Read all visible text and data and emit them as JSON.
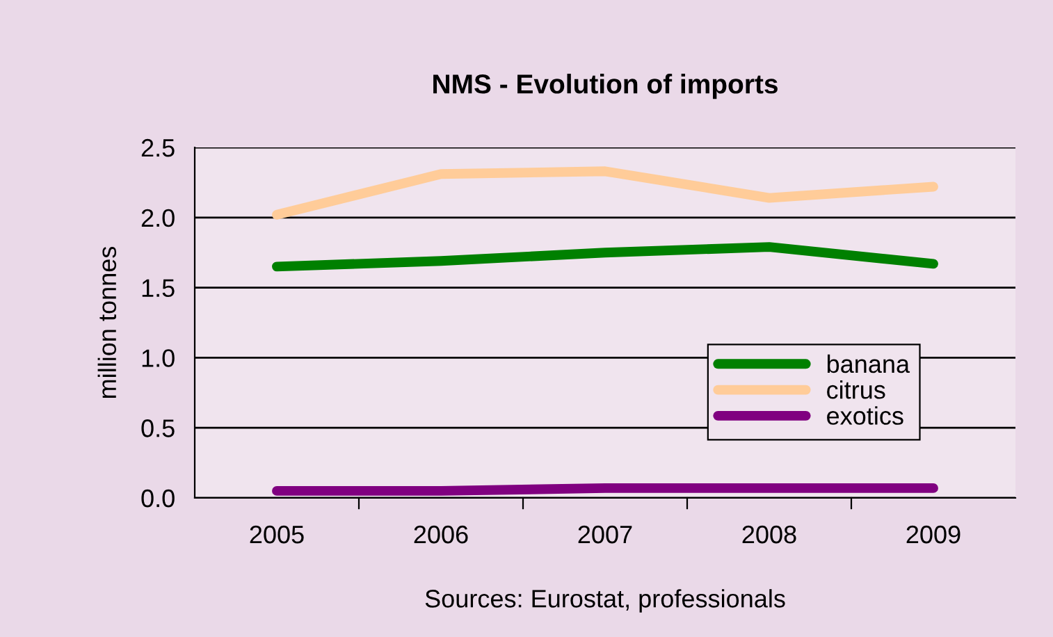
{
  "chart_data": {
    "type": "line",
    "title": "NMS - Evolution of imports",
    "ylabel": "million tonnes",
    "categories": [
      "2005",
      "2006",
      "2007",
      "2008",
      "2009"
    ],
    "series": [
      {
        "name": "banana",
        "color": "#008000",
        "values": [
          1.65,
          1.69,
          1.75,
          1.79,
          1.67
        ]
      },
      {
        "name": "citrus",
        "color": "#ffcc99",
        "values": [
          2.02,
          2.31,
          2.33,
          2.14,
          2.22
        ]
      },
      {
        "name": "exotics",
        "color": "#800080",
        "values": [
          0.05,
          0.05,
          0.07,
          0.07,
          0.07
        ]
      }
    ],
    "ylim": [
      0,
      2.5
    ],
    "yticks": [
      {
        "value": 0,
        "label": "0.0"
      },
      {
        "value": 0.5,
        "label": "0.5"
      },
      {
        "value": 1,
        "label": "1.0"
      },
      {
        "value": 1.5,
        "label": "1.5"
      },
      {
        "value": 2,
        "label": "2.0"
      },
      {
        "value": 2.5,
        "label": "2.5"
      }
    ],
    "grid": "y",
    "legend": "right",
    "marker": "none",
    "line_style": "solid",
    "annotations": [
      "Sources: Eurostat, professionals"
    ]
  }
}
